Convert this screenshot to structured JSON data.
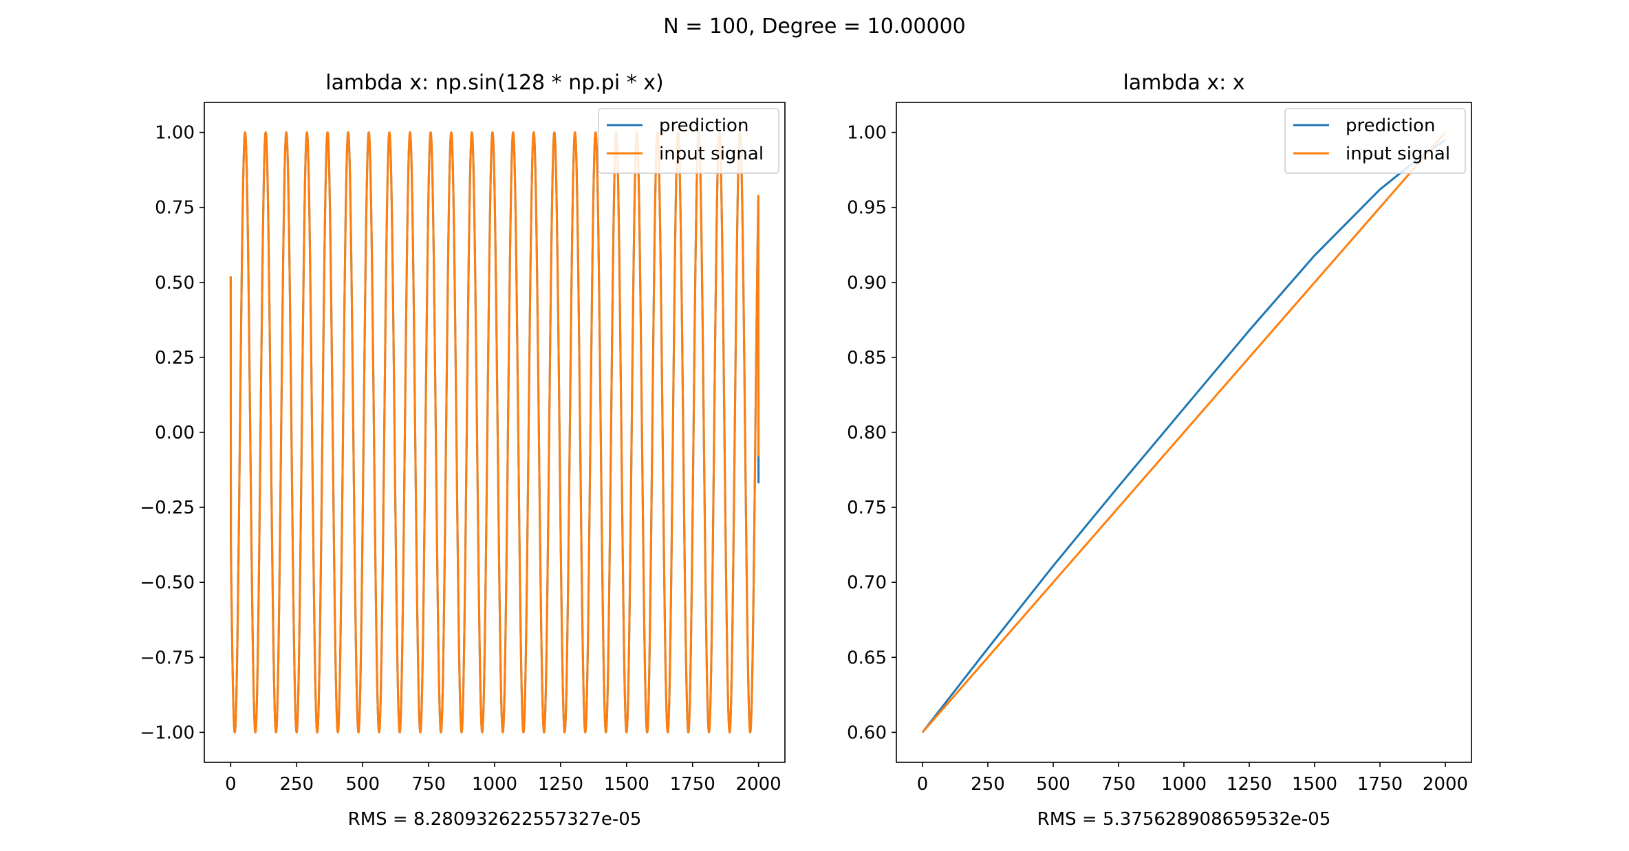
{
  "figure": {
    "suptitle": "N = 100, Degree = 10.00000"
  },
  "colors": {
    "prediction": "#1f77b4",
    "input_signal": "#ff7f0e"
  },
  "chart_data": [
    {
      "type": "line",
      "title": "lambda x: np.sin(128 * np.pi * x)",
      "xlabel": "RMS = 8.280932622557327e-05",
      "ylabel": "",
      "xlim": [
        -100,
        2100
      ],
      "ylim": [
        -1.1,
        1.1
      ],
      "xticks": [
        0,
        250,
        500,
        750,
        1000,
        1250,
        1500,
        1750,
        2000
      ],
      "xtick_labels": [
        "0",
        "250",
        "500",
        "750",
        "1000",
        "1250",
        "1500",
        "1750",
        "2000"
      ],
      "yticks": [
        1.0,
        0.75,
        0.5,
        0.25,
        0.0,
        -0.25,
        -0.5,
        -0.75,
        -1.0
      ],
      "ytick_labels": [
        "1.00",
        "0.75",
        "0.50",
        "0.25",
        "0.00",
        "−0.25",
        "−0.50",
        "−0.75",
        "−1.00"
      ],
      "legend_position": "upper right",
      "function": "sin(128*pi*x)",
      "series": [
        {
          "name": "prediction",
          "x_start": 0,
          "x_end": 2000,
          "y_start": 0.52,
          "y_end": -0.17,
          "periods": 25.6,
          "phase": 0.553
        },
        {
          "name": "input signal",
          "x_start": 0,
          "x_end": 2000,
          "y_start": 0.52,
          "y_end": -0.08,
          "periods": 25.6,
          "phase": 0.553
        }
      ]
    },
    {
      "type": "line",
      "title": "lambda x: x",
      "xlabel": "RMS = 5.375628908659532e-05",
      "ylabel": "",
      "xlim": [
        -100,
        2100
      ],
      "ylim": [
        0.58,
        1.02
      ],
      "xticks": [
        0,
        250,
        500,
        750,
        1000,
        1250,
        1500,
        1750,
        2000
      ],
      "xtick_labels": [
        "0",
        "250",
        "500",
        "750",
        "1000",
        "1250",
        "1500",
        "1750",
        "2000"
      ],
      "yticks": [
        1.0,
        0.95,
        0.9,
        0.85,
        0.8,
        0.75,
        0.7,
        0.65,
        0.6
      ],
      "ytick_labels": [
        "1.00",
        "0.95",
        "0.90",
        "0.85",
        "0.80",
        "0.75",
        "0.70",
        "0.65",
        "0.60"
      ],
      "legend_position": "upper right",
      "series": [
        {
          "name": "prediction",
          "x": [
            0,
            250,
            500,
            750,
            1000,
            1250,
            1500,
            1750,
            1900,
            2000
          ],
          "y": [
            0.6,
            0.656,
            0.711,
            0.764,
            0.816,
            0.868,
            0.918,
            0.962,
            0.983,
            0.995
          ]
        },
        {
          "name": "input signal",
          "x": [
            0,
            250,
            500,
            750,
            1000,
            1250,
            1500,
            1750,
            1900,
            2000
          ],
          "y": [
            0.6,
            0.65,
            0.7,
            0.75,
            0.8,
            0.85,
            0.9,
            0.95,
            0.98,
            1.0
          ]
        }
      ]
    }
  ]
}
